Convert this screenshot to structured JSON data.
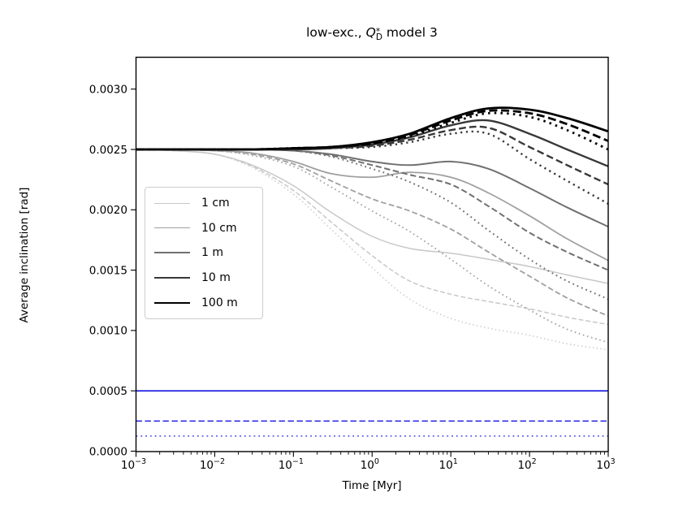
{
  "title": {
    "prefix": "low-exc., ",
    "symbol": "Q",
    "symbol_sup": "*",
    "symbol_sub": "D",
    "suffix": " model 3"
  },
  "axes": {
    "xlabel": "Time [Myr]",
    "ylabel": "Average inclination [rad]",
    "x_tick_exponents": [
      -3,
      -2,
      -1,
      0,
      1,
      2,
      3
    ],
    "x_tick_base": "10",
    "y_tick_labels": [
      "0.0000",
      "0.0005",
      "0.0010",
      "0.0015",
      "0.0020",
      "0.0025",
      "0.0030"
    ],
    "y_tick_values": [
      0.0,
      0.0005,
      0.001,
      0.0015,
      0.002,
      0.0025,
      0.003
    ]
  },
  "legend": {
    "items": [
      {
        "label": "1 cm",
        "color": "#c8c8c8",
        "linewidth": 1.5
      },
      {
        "label": "10 cm",
        "color": "#a0a0a0",
        "linewidth": 1.8
      },
      {
        "label": "1 m",
        "color": "#707070",
        "linewidth": 2.0
      },
      {
        "label": "10 m",
        "color": "#383838",
        "linewidth": 2.4
      },
      {
        "label": "100 m",
        "color": "#000000",
        "linewidth": 2.8
      }
    ]
  },
  "chart_data": {
    "type": "line",
    "title": "low-exc., Q_D^* model 3",
    "xlabel": "Time [Myr]",
    "ylabel": "Average inclination [rad]",
    "xscale": "log",
    "xlim": [
      0.001,
      1000
    ],
    "ylim": [
      0.0,
      0.00327
    ],
    "grid": false,
    "legend_position": "center left",
    "x": [
      0.001,
      0.003,
      0.01,
      0.03,
      0.1,
      0.3,
      1,
      3,
      10,
      30,
      100,
      300,
      1000
    ],
    "series": [
      {
        "name": "1 cm solid",
        "size": "1 cm",
        "style": "solid",
        "color": "#c8c8c8",
        "linewidth": 1.5,
        "y": [
          0.0025,
          0.00249,
          0.00246,
          0.00237,
          0.0022,
          0.00198,
          0.00178,
          0.00168,
          0.00164,
          0.00159,
          0.00153,
          0.00146,
          0.00139
        ]
      },
      {
        "name": "1 cm dashed",
        "size": "1 cm",
        "style": "dashed",
        "color": "#c8c8c8",
        "linewidth": 1.5,
        "y": [
          0.0025,
          0.00249,
          0.00246,
          0.00236,
          0.00216,
          0.0019,
          0.00162,
          0.00141,
          0.0013,
          0.00124,
          0.00118,
          0.00111,
          0.00105
        ]
      },
      {
        "name": "1 cm dotted",
        "size": "1 cm",
        "style": "dotted",
        "color": "#c8c8c8",
        "linewidth": 1.5,
        "y": [
          0.0025,
          0.00249,
          0.00246,
          0.00235,
          0.00213,
          0.00184,
          0.00152,
          0.00126,
          0.0011,
          0.00102,
          0.00096,
          0.00089,
          0.00084
        ]
      },
      {
        "name": "10 cm solid",
        "size": "10 cm",
        "style": "solid",
        "color": "#a0a0a0",
        "linewidth": 1.8,
        "y": [
          0.0025,
          0.0025,
          0.00249,
          0.00247,
          0.0024,
          0.0023,
          0.00227,
          0.00231,
          0.00227,
          0.00214,
          0.00195,
          0.00176,
          0.00158
        ]
      },
      {
        "name": "10 cm dashed",
        "size": "10 cm",
        "style": "dashed",
        "color": "#a0a0a0",
        "linewidth": 1.8,
        "y": [
          0.0025,
          0.0025,
          0.00249,
          0.00246,
          0.00238,
          0.00224,
          0.00209,
          0.00199,
          0.00184,
          0.00165,
          0.00145,
          0.00127,
          0.00112
        ]
      },
      {
        "name": "10 cm dotted",
        "size": "10 cm",
        "style": "dotted",
        "color": "#a0a0a0",
        "linewidth": 1.8,
        "y": [
          0.0025,
          0.0025,
          0.00249,
          0.00245,
          0.00236,
          0.00219,
          0.00199,
          0.00182,
          0.00159,
          0.00137,
          0.00117,
          0.00101,
          0.0009
        ]
      },
      {
        "name": "1 m solid",
        "size": "1 m",
        "style": "solid",
        "color": "#707070",
        "linewidth": 2.0,
        "y": [
          0.0025,
          0.0025,
          0.0025,
          0.0025,
          0.00249,
          0.00246,
          0.0024,
          0.00237,
          0.0024,
          0.00234,
          0.00218,
          0.00202,
          0.00186
        ]
      },
      {
        "name": "1 m dashed",
        "size": "1 m",
        "style": "dashed",
        "color": "#707070",
        "linewidth": 2.0,
        "y": [
          0.0025,
          0.0025,
          0.0025,
          0.0025,
          0.00249,
          0.00245,
          0.00237,
          0.00229,
          0.00221,
          0.00203,
          0.00181,
          0.00165,
          0.0015
        ]
      },
      {
        "name": "1 m dotted",
        "size": "1 m",
        "style": "dotted",
        "color": "#707070",
        "linewidth": 2.0,
        "y": [
          0.0025,
          0.0025,
          0.0025,
          0.0025,
          0.00249,
          0.00244,
          0.00234,
          0.00223,
          0.00206,
          0.00183,
          0.00159,
          0.00141,
          0.00126
        ]
      },
      {
        "name": "10 m solid",
        "size": "10 m",
        "style": "solid",
        "color": "#383838",
        "linewidth": 2.4,
        "y": [
          0.0025,
          0.0025,
          0.0025,
          0.0025,
          0.0025,
          0.00251,
          0.00254,
          0.0026,
          0.0027,
          0.00274,
          0.00263,
          0.0025,
          0.00236
        ]
      },
      {
        "name": "10 m dashed",
        "size": "10 m",
        "style": "dashed",
        "color": "#383838",
        "linewidth": 2.4,
        "y": [
          0.0025,
          0.0025,
          0.0025,
          0.0025,
          0.0025,
          0.00251,
          0.00253,
          0.00258,
          0.00266,
          0.00268,
          0.00252,
          0.00237,
          0.00221
        ]
      },
      {
        "name": "10 m dotted",
        "size": "10 m",
        "style": "dotted",
        "color": "#383838",
        "linewidth": 2.4,
        "y": [
          0.0025,
          0.0025,
          0.0025,
          0.0025,
          0.0025,
          0.00251,
          0.00252,
          0.00256,
          0.00263,
          0.00263,
          0.00242,
          0.00224,
          0.00205
        ]
      },
      {
        "name": "100 m solid",
        "size": "100 m",
        "style": "solid",
        "color": "#000000",
        "linewidth": 2.8,
        "y": [
          0.0025,
          0.0025,
          0.0025,
          0.0025,
          0.00251,
          0.00252,
          0.00256,
          0.00263,
          0.00276,
          0.00284,
          0.00283,
          0.00276,
          0.00265
        ]
      },
      {
        "name": "100 m dashed",
        "size": "100 m",
        "style": "dashed",
        "color": "#000000",
        "linewidth": 2.8,
        "y": [
          0.0025,
          0.0025,
          0.0025,
          0.0025,
          0.00251,
          0.00252,
          0.00255,
          0.00262,
          0.00274,
          0.00282,
          0.0028,
          0.00271,
          0.00257
        ]
      },
      {
        "name": "100 m dotted",
        "size": "100 m",
        "style": "dotted",
        "color": "#000000",
        "linewidth": 2.8,
        "y": [
          0.0025,
          0.0025,
          0.0025,
          0.0025,
          0.00251,
          0.00252,
          0.00255,
          0.00261,
          0.00272,
          0.0028,
          0.00277,
          0.00266,
          0.0025
        ]
      }
    ],
    "reference_lines": [
      {
        "name": "blue solid",
        "y": 0.0005,
        "style": "solid",
        "color": "#0000dd",
        "linewidth": 1.5
      },
      {
        "name": "blue dashed",
        "y": 0.00025,
        "style": "dashed",
        "color": "#0000dd",
        "linewidth": 1.2
      },
      {
        "name": "blue dotted",
        "y": 0.000125,
        "style": "dotted",
        "color": "#0000dd",
        "linewidth": 1.2
      }
    ]
  }
}
